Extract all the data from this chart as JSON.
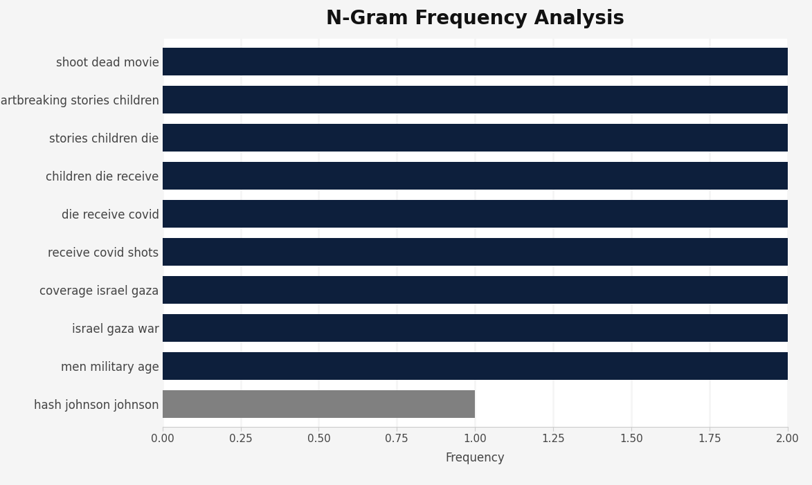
{
  "title": "N-Gram Frequency Analysis",
  "categories": [
    "hash johnson johnson",
    "men military age",
    "israel gaza war",
    "coverage israel gaza",
    "receive covid shots",
    "die receive covid",
    "children die receive",
    "stories children die",
    "heartbreaking stories children",
    "shoot dead movie"
  ],
  "values": [
    1.0,
    2.0,
    2.0,
    2.0,
    2.0,
    2.0,
    2.0,
    2.0,
    2.0,
    2.0
  ],
  "bar_colors": [
    "#808080",
    "#0d1f3c",
    "#0d1f3c",
    "#0d1f3c",
    "#0d1f3c",
    "#0d1f3c",
    "#0d1f3c",
    "#0d1f3c",
    "#0d1f3c",
    "#0d1f3c"
  ],
  "xlabel": "Frequency",
  "xlim": [
    0,
    2.0
  ],
  "xticks": [
    0.0,
    0.25,
    0.5,
    0.75,
    1.0,
    1.25,
    1.5,
    1.75,
    2.0
  ],
  "xtick_labels": [
    "0.00",
    "0.25",
    "0.50",
    "0.75",
    "1.00",
    "1.25",
    "1.50",
    "1.75",
    "2.00"
  ],
  "fig_background_color": "#f5f5f5",
  "plot_background_color": "#ffffff",
  "title_fontsize": 20,
  "label_fontsize": 12,
  "tick_fontsize": 11,
  "bar_height": 0.72,
  "navy_color": "#0d1f3c",
  "gray_color": "#808080"
}
